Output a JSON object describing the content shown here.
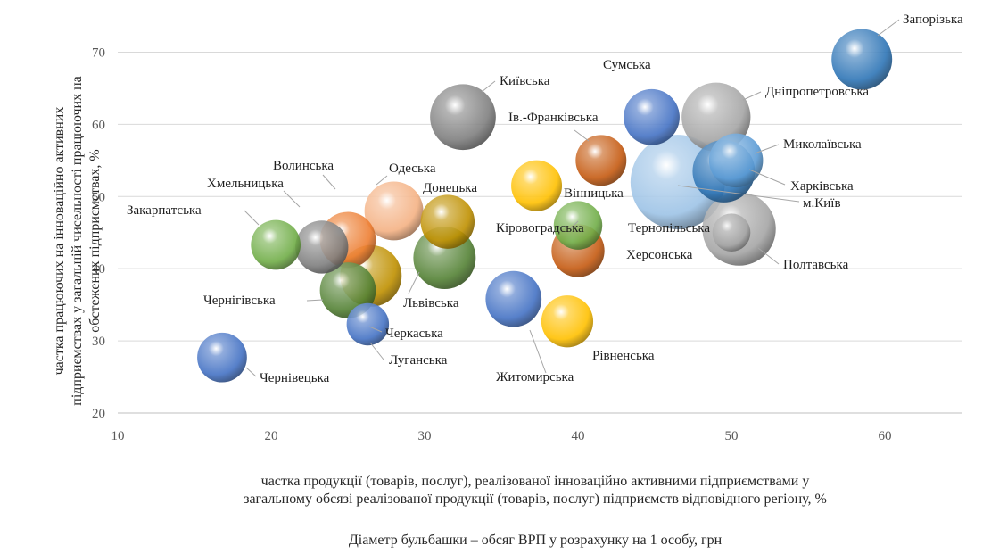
{
  "chart_data": {
    "type": "scatter",
    "subtype": "bubble",
    "xlabel_line1": "частка продукції  (товарів, послуг), реалізованої інноваційно  активними  підприємствами у",
    "xlabel_line2": "загальному обсязі реалізованої продукції (товарів, послуг) підприємств відповідного регіону, %",
    "ylabel_line1": "частка працюючих на  інноваційно  активних",
    "ylabel_line2": "підприємствах у загальній  чисельності працюючих на",
    "ylabel_line3": "обстежених підприємствах, %",
    "note": "Діаметр бульбашки – обсяг ВРП у розрахунку на  1 особу, грн",
    "xlim": [
      10,
      65
    ],
    "ylim": [
      20,
      75
    ],
    "x_ticks": [
      "10",
      "20",
      "30",
      "40",
      "50",
      "60"
    ],
    "y_ticks": [
      "20",
      "30",
      "40",
      "50",
      "60",
      "70"
    ],
    "grid": "horizontal",
    "points": [
      {
        "label": "Запорізька",
        "x": 58.5,
        "y": 69,
        "size": 3.0,
        "color": "#2e75b6"
      },
      {
        "label": "Київська",
        "x": 32.5,
        "y": 61,
        "size": 3.6,
        "color": "#7f7f7f"
      },
      {
        "label": "Сумська",
        "x": 44.8,
        "y": 61,
        "size": 2.5,
        "color": "#4472c4"
      },
      {
        "label": "Дніпропетровська",
        "x": 49,
        "y": 61,
        "size": 4.0,
        "color": "#a5a5a5"
      },
      {
        "label": "Ів.-Франківська",
        "x": 41.5,
        "y": 55,
        "size": 2.0,
        "color": "#c55a11"
      },
      {
        "label": "Миколаївська",
        "x": 50.3,
        "y": 55,
        "size": 2.3,
        "color": "#5b9bd5"
      },
      {
        "label": "Харківська",
        "x": 49.5,
        "y": 53.5,
        "size": 3.2,
        "color": "#2e75b6"
      },
      {
        "label": "м.Київ",
        "x": 46.5,
        "y": 52,
        "size": 8.0,
        "color": "#9dc3e6"
      },
      {
        "label": "Одеська",
        "x": 28,
        "y": 48,
        "size": 2.8,
        "color": "#f4b183"
      },
      {
        "label": "Донецька",
        "x": 31.5,
        "y": 46.5,
        "size": 2.3,
        "color": "#bf9000"
      },
      {
        "label": "Вінницька",
        "x": 37.3,
        "y": 51.5,
        "size": 2.0,
        "color": "#ffc000"
      },
      {
        "label": "Кіровоградська",
        "x": 40,
        "y": 46,
        "size": 1.8,
        "color": "#70ad47"
      },
      {
        "label": "Тернопільська",
        "x": 50.5,
        "y": 45.5,
        "size": 4.6,
        "color": "#a5a5a5"
      },
      {
        "label": "Херсонська",
        "x": 40,
        "y": 42.5,
        "size": 2.2,
        "color": "#c55a11"
      },
      {
        "label": "Полтавська",
        "x": 50,
        "y": 45,
        "size": 1.0,
        "color": "#a5a5a5"
      },
      {
        "label": "Волинська",
        "x": 25,
        "y": 44,
        "size": 2.5,
        "color": "#ed7d31"
      },
      {
        "label": "Хмельницька",
        "x": 23.3,
        "y": 43,
        "size": 2.2,
        "color": "#7f7f7f"
      },
      {
        "label": "Закарпатська",
        "x": 20.3,
        "y": 43.3,
        "size": 1.9,
        "color": "#70ad47"
      },
      {
        "label": "Львівська",
        "x": 31.3,
        "y": 41.5,
        "size": 3.2,
        "color": "#548235"
      },
      {
        "label": "Луганська",
        "x": 26.5,
        "y": 39,
        "size": 3.1,
        "color": "#bf9000"
      },
      {
        "label": "Чернігівська",
        "x": 25,
        "y": 37,
        "size": 2.5,
        "color": "#548235"
      },
      {
        "label": "Житомирська",
        "x": 35.8,
        "y": 35.8,
        "size": 2.5,
        "color": "#4472c4"
      },
      {
        "label": "Рівненська",
        "x": 39.3,
        "y": 32.7,
        "size": 2.1,
        "color": "#ffc000"
      },
      {
        "label": "Черкаська",
        "x": 26.3,
        "y": 32.3,
        "size": 1.3,
        "color": "#4472c4"
      },
      {
        "label": "Чернівецька",
        "x": 16.8,
        "y": 27.7,
        "size": 1.9,
        "color": "#4472c4"
      }
    ]
  }
}
